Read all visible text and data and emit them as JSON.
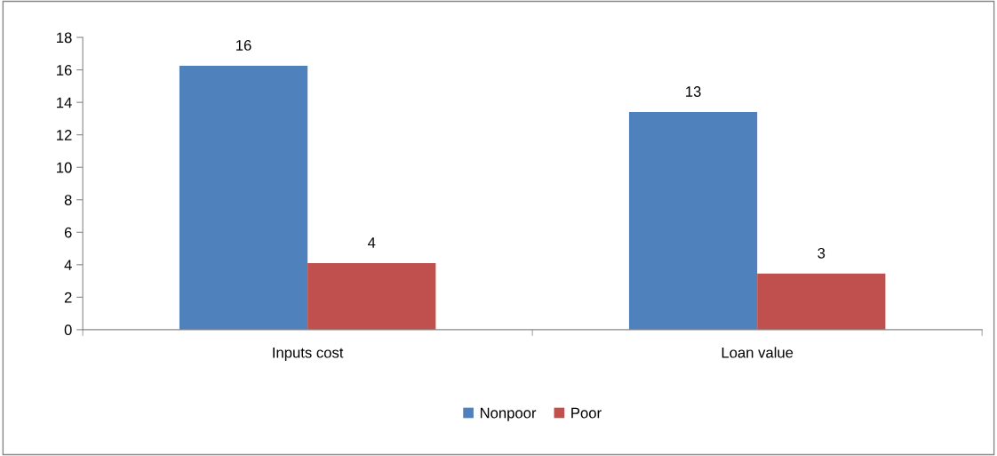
{
  "chart_data": {
    "type": "bar",
    "categories": [
      "Inputs cost",
      "Loan value"
    ],
    "series": [
      {
        "name": "Nonpoor",
        "color": "#4f81bd",
        "values": [
          16.25,
          13.4
        ],
        "value_labels": [
          "16",
          "13"
        ]
      },
      {
        "name": "Poor",
        "color": "#c0504d",
        "values": [
          4.1,
          3.45
        ],
        "value_labels": [
          "4",
          "3"
        ]
      }
    ],
    "ylim": [
      0,
      18
    ],
    "yticks": [
      0,
      2,
      4,
      6,
      8,
      10,
      12,
      14,
      16,
      18
    ],
    "grid": false,
    "legend": "bottom"
  }
}
